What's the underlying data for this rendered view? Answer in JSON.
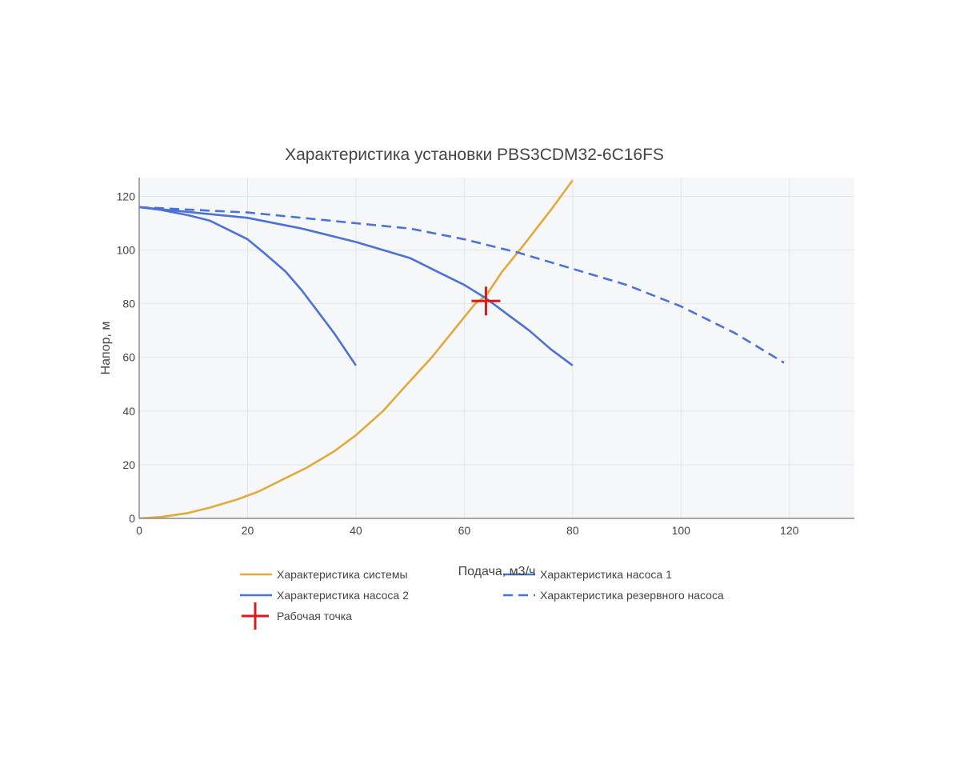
{
  "chart_data": {
    "type": "line",
    "title": "Характеристика установки PBS3CDM32-6C16FS",
    "xlabel": "Подача, м3/ч",
    "ylabel": "Напор, м",
    "xlim": [
      0,
      132
    ],
    "ylim": [
      0,
      127
    ],
    "xticks": [
      "0",
      "20",
      "40",
      "60",
      "80",
      "100",
      "120"
    ],
    "yticks": [
      "0",
      "20",
      "40",
      "60",
      "80",
      "100",
      "120"
    ],
    "grid": true,
    "legend_position": "bottom",
    "series": [
      {
        "name": "Характеристика системы",
        "color": "#e2a93b",
        "dash": "solid",
        "x": [
          0,
          4,
          9,
          13,
          18,
          22,
          27,
          31,
          36,
          40,
          45,
          49,
          54,
          58,
          62,
          64,
          67,
          71,
          76,
          80
        ],
        "y": [
          0,
          0.5,
          2,
          4,
          7,
          10,
          15,
          19,
          25,
          31,
          40,
          49,
          60,
          70,
          80,
          83,
          92,
          102,
          115,
          126
        ]
      },
      {
        "name": "Характеристика насоса 1",
        "color": "#4b72d6",
        "dash": "solid",
        "x": [
          0,
          4,
          9,
          13,
          16,
          20,
          23,
          27,
          30,
          33,
          36,
          40
        ],
        "y": [
          116,
          115,
          113,
          111,
          108,
          104,
          99,
          92,
          85,
          77,
          69,
          57
        ]
      },
      {
        "name": "Характеристика насоса 2",
        "color": "#4b72d6",
        "dash": "solid",
        "x": [
          0,
          10,
          20,
          30,
          40,
          50,
          55,
          60,
          64,
          68,
          72,
          76,
          80
        ],
        "y": [
          116,
          114,
          112,
          108,
          103,
          97,
          92,
          87,
          82,
          76,
          70,
          63,
          57
        ]
      },
      {
        "name": "Характеристика резервного насоса",
        "color": "#4b72d6",
        "dash": "dash",
        "x": [
          0,
          10,
          20,
          30,
          40,
          50,
          60,
          70,
          80,
          90,
          100,
          110,
          119
        ],
        "y": [
          116,
          115,
          114,
          112,
          110,
          108,
          104,
          99,
          93,
          87,
          79,
          69,
          58
        ]
      }
    ],
    "operating_point": {
      "name": "Рабочая точка",
      "color": "#e0171b",
      "x": 64,
      "y": 81
    }
  }
}
